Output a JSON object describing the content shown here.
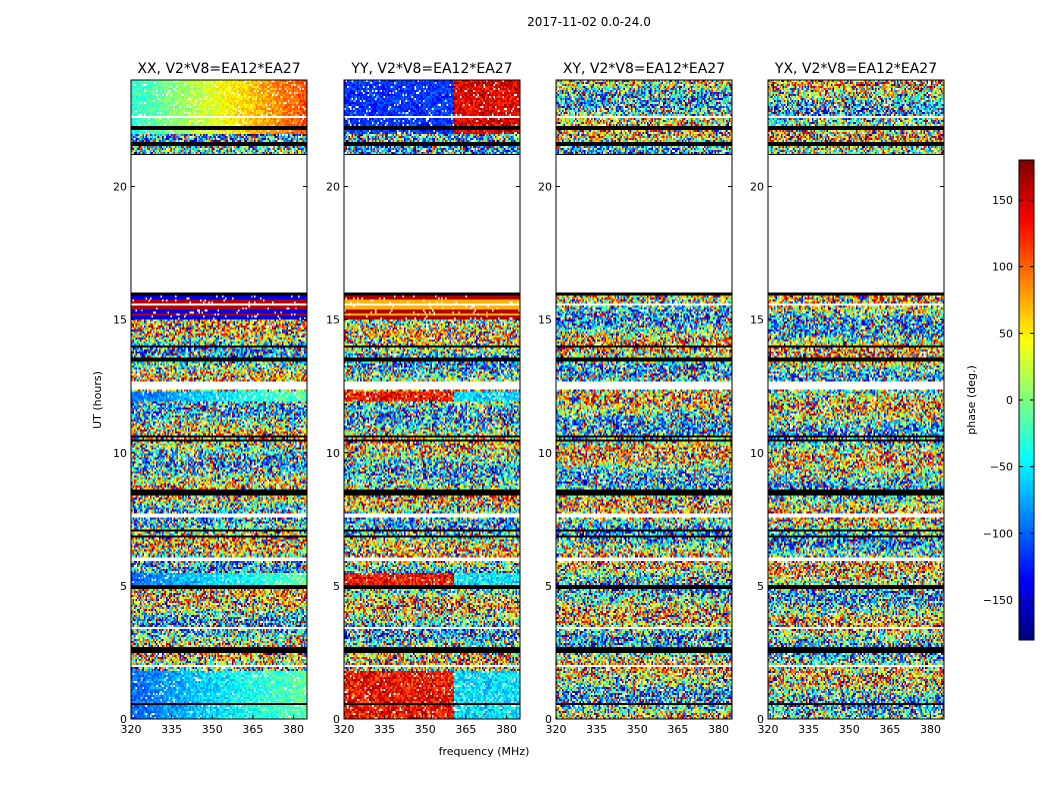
{
  "figure_title": "2017-11-02 0.0-24.0",
  "chart_data": {
    "type": "heatmap",
    "title": "2017-11-02 0.0-24.0",
    "xlabel": "frequency (MHz)",
    "ylabel": "UT (hours)",
    "xlim": [
      320,
      385
    ],
    "ylim": [
      0,
      24
    ],
    "x_ticks": [
      "320",
      "335",
      "350",
      "365",
      "380"
    ],
    "x_tick_values": [
      320,
      335,
      350,
      365,
      380
    ],
    "y_ticks": [
      "0",
      "5",
      "10",
      "15",
      "20"
    ],
    "y_tick_values": [
      0,
      5,
      10,
      15,
      20
    ],
    "colorbar": {
      "label": "phase (deg.)",
      "range": [
        -180,
        180
      ],
      "ticks": [
        "150",
        "100",
        "50",
        "0",
        "−50",
        "−100",
        "−150"
      ],
      "tick_values": [
        150,
        100,
        50,
        0,
        -50,
        -100,
        -150
      ],
      "colormap": "jet"
    },
    "panels": [
      {
        "name": "xx",
        "title": "XX, V2*V8=EA12*EA27"
      },
      {
        "name": "yy",
        "title": "YY, V2*V8=EA12*EA27"
      },
      {
        "name": "xy",
        "title": "XY, V2*V8=EA12*EA27"
      },
      {
        "name": "yx",
        "title": "YX, V2*V8=EA12*EA27"
      }
    ],
    "gap_ut": [
      16.0,
      21.2
    ]
  }
}
